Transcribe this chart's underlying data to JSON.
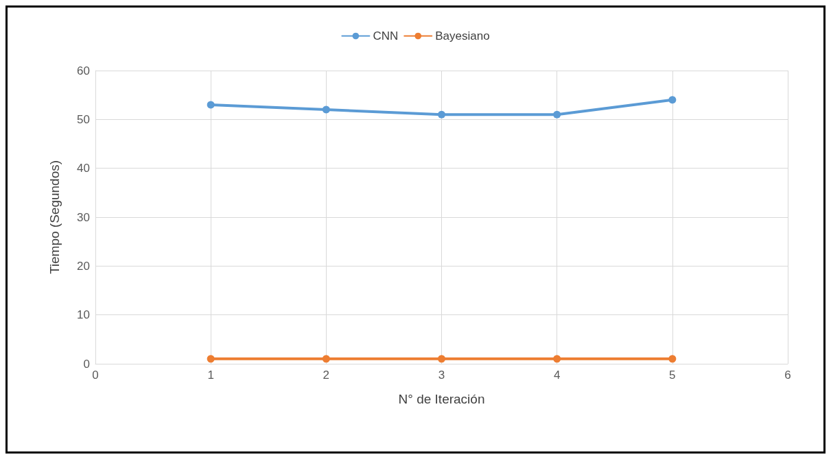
{
  "chart_data": {
    "type": "line",
    "xlabel": "N° de Iteración",
    "ylabel": "Tiempo (Segundos)",
    "x": [
      1,
      2,
      3,
      4,
      5
    ],
    "series": [
      {
        "name": "CNN",
        "color": "#5b9bd5",
        "values": [
          53,
          52,
          51,
          51,
          54
        ]
      },
      {
        "name": "Bayesiano",
        "color": "#ed7d31",
        "values": [
          1,
          1,
          1,
          1,
          1
        ]
      }
    ],
    "xlim": [
      0,
      6
    ],
    "xticks": [
      0,
      1,
      2,
      3,
      4,
      5,
      6
    ],
    "ylim": [
      0,
      60
    ],
    "yticks": [
      0,
      10,
      20,
      30,
      40,
      50,
      60
    ],
    "grid": true,
    "legend": "top",
    "marker": "circle",
    "line_style": "solid"
  }
}
